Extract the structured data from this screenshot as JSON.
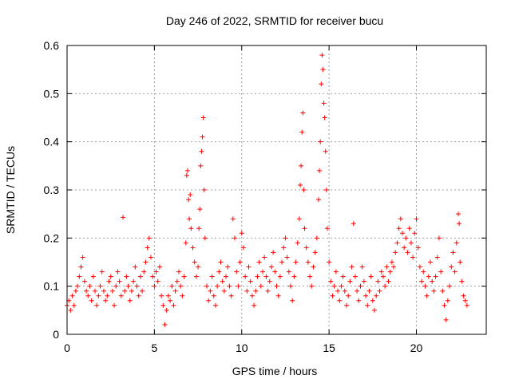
{
  "chart_data": {
    "type": "scatter",
    "title": "Day 246 of 2022, SRMTID for receiver bucu",
    "xlabel": "GPS time / hours",
    "ylabel": "SRMTID / TECUs",
    "xlim": [
      0,
      24
    ],
    "ylim": [
      0,
      0.6
    ],
    "xticks": [
      0,
      5,
      10,
      15,
      20
    ],
    "xtick_labels": [
      "0",
      "5",
      "10",
      "15",
      "20"
    ],
    "yticks": [
      0,
      0.1,
      0.2,
      0.3,
      0.4,
      0.5,
      0.6
    ],
    "ytick_labels": [
      "0",
      "0.1",
      "0.2",
      "0.3",
      "0.4",
      "0.5",
      "0.6"
    ],
    "grid": true,
    "marker": "plus",
    "color": "#ff0000",
    "series": [
      {
        "name": "bucu",
        "points": [
          [
            0.0,
            0.06
          ],
          [
            0.1,
            0.07
          ],
          [
            0.2,
            0.05
          ],
          [
            0.3,
            0.08
          ],
          [
            0.4,
            0.06
          ],
          [
            0.5,
            0.09
          ],
          [
            0.6,
            0.1
          ],
          [
            0.7,
            0.12
          ],
          [
            0.8,
            0.14
          ],
          [
            0.9,
            0.16
          ],
          [
            1.0,
            0.11
          ],
          [
            1.1,
            0.09
          ],
          [
            1.2,
            0.08
          ],
          [
            1.3,
            0.1
          ],
          [
            1.4,
            0.07
          ],
          [
            1.5,
            0.12
          ],
          [
            1.6,
            0.09
          ],
          [
            1.7,
            0.06
          ],
          [
            1.8,
            0.08
          ],
          [
            1.9,
            0.1
          ],
          [
            2.0,
            0.13
          ],
          [
            2.1,
            0.09
          ],
          [
            2.2,
            0.07
          ],
          [
            2.3,
            0.08
          ],
          [
            2.4,
            0.11
          ],
          [
            2.5,
            0.12
          ],
          [
            2.6,
            0.09
          ],
          [
            2.7,
            0.06
          ],
          [
            2.8,
            0.1
          ],
          [
            2.9,
            0.13
          ],
          [
            3.0,
            0.11
          ],
          [
            3.1,
            0.08
          ],
          [
            3.2,
            0.243
          ],
          [
            3.3,
            0.09
          ],
          [
            3.4,
            0.12
          ],
          [
            3.5,
            0.1
          ],
          [
            3.6,
            0.07
          ],
          [
            3.7,
            0.09
          ],
          [
            3.8,
            0.11
          ],
          [
            3.9,
            0.14
          ],
          [
            4.0,
            0.1
          ],
          [
            4.1,
            0.08
          ],
          [
            4.2,
            0.12
          ],
          [
            4.3,
            0.09
          ],
          [
            4.4,
            0.13
          ],
          [
            4.5,
            0.15
          ],
          [
            4.6,
            0.18
          ],
          [
            4.7,
            0.2
          ],
          [
            4.8,
            0.16
          ],
          [
            4.9,
            0.12
          ],
          [
            5.0,
            0.1
          ],
          [
            5.1,
            0.13
          ],
          [
            5.2,
            0.11
          ],
          [
            5.3,
            0.14
          ],
          [
            5.4,
            0.08
          ],
          [
            5.5,
            0.06
          ],
          [
            5.6,
            0.02
          ],
          [
            5.7,
            0.05
          ],
          [
            5.8,
            0.08
          ],
          [
            5.9,
            0.07
          ],
          [
            6.0,
            0.1
          ],
          [
            6.1,
            0.06
          ],
          [
            6.2,
            0.09
          ],
          [
            6.3,
            0.11
          ],
          [
            6.4,
            0.13
          ],
          [
            6.5,
            0.1
          ],
          [
            6.6,
            0.08
          ],
          [
            6.7,
            0.12
          ],
          [
            6.8,
            0.19
          ],
          [
            6.85,
            0.33
          ],
          [
            6.9,
            0.34
          ],
          [
            6.95,
            0.28
          ],
          [
            7.0,
            0.24
          ],
          [
            7.05,
            0.29
          ],
          [
            7.1,
            0.22
          ],
          [
            7.2,
            0.18
          ],
          [
            7.3,
            0.15
          ],
          [
            7.4,
            0.12
          ],
          [
            7.5,
            0.14
          ],
          [
            7.55,
            0.22
          ],
          [
            7.6,
            0.26
          ],
          [
            7.65,
            0.35
          ],
          [
            7.7,
            0.38
          ],
          [
            7.75,
            0.41
          ],
          [
            7.8,
            0.45
          ],
          [
            7.85,
            0.3
          ],
          [
            7.9,
            0.2
          ],
          [
            8.0,
            0.1
          ],
          [
            8.1,
            0.07
          ],
          [
            8.2,
            0.09
          ],
          [
            8.3,
            0.12
          ],
          [
            8.4,
            0.08
          ],
          [
            8.5,
            0.06
          ],
          [
            8.6,
            0.1
          ],
          [
            8.7,
            0.13
          ],
          [
            8.8,
            0.15
          ],
          [
            8.9,
            0.11
          ],
          [
            9.0,
            0.09
          ],
          [
            9.1,
            0.12
          ],
          [
            9.2,
            0.14
          ],
          [
            9.3,
            0.1
          ],
          [
            9.4,
            0.08
          ],
          [
            9.5,
            0.24
          ],
          [
            9.6,
            0.2
          ],
          [
            9.7,
            0.13
          ],
          [
            9.8,
            0.1
          ],
          [
            9.9,
            0.15
          ],
          [
            10.0,
            0.21
          ],
          [
            10.1,
            0.18
          ],
          [
            10.2,
            0.12
          ],
          [
            10.3,
            0.09
          ],
          [
            10.4,
            0.14
          ],
          [
            10.5,
            0.11
          ],
          [
            10.6,
            0.08
          ],
          [
            10.7,
            0.06
          ],
          [
            10.8,
            0.09
          ],
          [
            10.9,
            0.12
          ],
          [
            11.0,
            0.15
          ],
          [
            11.1,
            0.1
          ],
          [
            11.2,
            0.13
          ],
          [
            11.3,
            0.16
          ],
          [
            11.4,
            0.12
          ],
          [
            11.5,
            0.09
          ],
          [
            11.6,
            0.11
          ],
          [
            11.7,
            0.14
          ],
          [
            11.8,
            0.17
          ],
          [
            11.9,
            0.13
          ],
          [
            12.0,
            0.1
          ],
          [
            12.1,
            0.08
          ],
          [
            12.2,
            0.12
          ],
          [
            12.3,
            0.15
          ],
          [
            12.4,
            0.18
          ],
          [
            12.5,
            0.2
          ],
          [
            12.6,
            0.16
          ],
          [
            12.7,
            0.13
          ],
          [
            12.8,
            0.1
          ],
          [
            12.9,
            0.07
          ],
          [
            13.0,
            0.12
          ],
          [
            13.1,
            0.15
          ],
          [
            13.2,
            0.19
          ],
          [
            13.3,
            0.24
          ],
          [
            13.35,
            0.31
          ],
          [
            13.4,
            0.35
          ],
          [
            13.45,
            0.42
          ],
          [
            13.5,
            0.46
          ],
          [
            13.55,
            0.3
          ],
          [
            13.6,
            0.22
          ],
          [
            13.7,
            0.18
          ],
          [
            13.8,
            0.15
          ],
          [
            13.9,
            0.12
          ],
          [
            14.0,
            0.1
          ],
          [
            14.1,
            0.14
          ],
          [
            14.2,
            0.17
          ],
          [
            14.3,
            0.2
          ],
          [
            14.4,
            0.28
          ],
          [
            14.45,
            0.34
          ],
          [
            14.5,
            0.4
          ],
          [
            14.55,
            0.52
          ],
          [
            14.6,
            0.58
          ],
          [
            14.65,
            0.55
          ],
          [
            14.7,
            0.48
          ],
          [
            14.75,
            0.45
          ],
          [
            14.8,
            0.38
          ],
          [
            14.85,
            0.3
          ],
          [
            14.9,
            0.22
          ],
          [
            15.0,
            0.15
          ],
          [
            15.1,
            0.11
          ],
          [
            15.2,
            0.08
          ],
          [
            15.3,
            0.1
          ],
          [
            15.4,
            0.13
          ],
          [
            15.5,
            0.09
          ],
          [
            15.6,
            0.07
          ],
          [
            15.7,
            0.1
          ],
          [
            15.8,
            0.12
          ],
          [
            15.9,
            0.09
          ],
          [
            16.0,
            0.06
          ],
          [
            16.1,
            0.08
          ],
          [
            16.2,
            0.11
          ],
          [
            16.3,
            0.14
          ],
          [
            16.4,
            0.23
          ],
          [
            16.5,
            0.12
          ],
          [
            16.6,
            0.09
          ],
          [
            16.7,
            0.07
          ],
          [
            16.8,
            0.1
          ],
          [
            16.9,
            0.14
          ],
          [
            17.0,
            0.11
          ],
          [
            17.1,
            0.08
          ],
          [
            17.2,
            0.06
          ],
          [
            17.3,
            0.09
          ],
          [
            17.4,
            0.12
          ],
          [
            17.5,
            0.07
          ],
          [
            17.6,
            0.05
          ],
          [
            17.7,
            0.08
          ],
          [
            17.8,
            0.11
          ],
          [
            17.9,
            0.09
          ],
          [
            18.0,
            0.13
          ],
          [
            18.1,
            0.12
          ],
          [
            18.2,
            0.1
          ],
          [
            18.3,
            0.14
          ],
          [
            18.4,
            0.11
          ],
          [
            18.5,
            0.13
          ],
          [
            18.6,
            0.15
          ],
          [
            18.7,
            0.14
          ],
          [
            18.8,
            0.17
          ],
          [
            18.9,
            0.19
          ],
          [
            19.0,
            0.22
          ],
          [
            19.1,
            0.24
          ],
          [
            19.2,
            0.21
          ],
          [
            19.3,
            0.18
          ],
          [
            19.4,
            0.2
          ],
          [
            19.5,
            0.17
          ],
          [
            19.6,
            0.22
          ],
          [
            19.7,
            0.19
          ],
          [
            19.8,
            0.16
          ],
          [
            19.9,
            0.21
          ],
          [
            20.0,
            0.24
          ],
          [
            20.1,
            0.18
          ],
          [
            20.2,
            0.14
          ],
          [
            20.3,
            0.11
          ],
          [
            20.4,
            0.13
          ],
          [
            20.5,
            0.1
          ],
          [
            20.6,
            0.08
          ],
          [
            20.7,
            0.12
          ],
          [
            20.8,
            0.15
          ],
          [
            20.9,
            0.11
          ],
          [
            21.0,
            0.09
          ],
          [
            21.1,
            0.12
          ],
          [
            21.2,
            0.16
          ],
          [
            21.3,
            0.2
          ],
          [
            21.4,
            0.13
          ],
          [
            21.5,
            0.09
          ],
          [
            21.6,
            0.06
          ],
          [
            21.7,
            0.03
          ],
          [
            21.8,
            0.07
          ],
          [
            21.9,
            0.1
          ],
          [
            22.0,
            0.14
          ],
          [
            22.1,
            0.17
          ],
          [
            22.2,
            0.13
          ],
          [
            22.3,
            0.19
          ],
          [
            22.4,
            0.25
          ],
          [
            22.45,
            0.23
          ],
          [
            22.5,
            0.15
          ],
          [
            22.6,
            0.11
          ],
          [
            22.7,
            0.08
          ],
          [
            22.8,
            0.07
          ],
          [
            22.9,
            0.06
          ]
        ]
      }
    ]
  }
}
